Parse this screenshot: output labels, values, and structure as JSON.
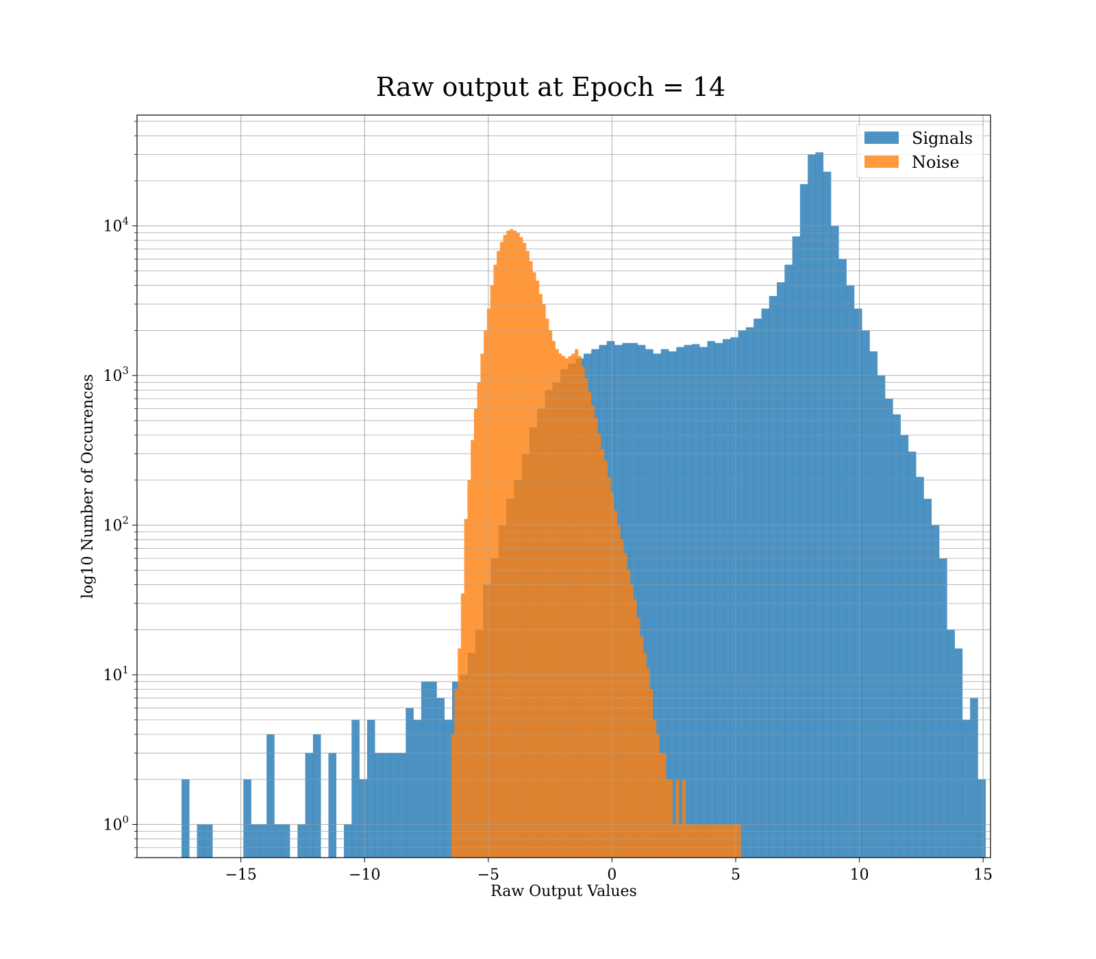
{
  "chart_data": {
    "type": "bar",
    "title": "Raw output at Epoch = 14",
    "xlabel": "Raw Output Values",
    "ylabel": "log10 Number of Occurences",
    "xlim": [
      -19.2,
      15.3
    ],
    "ylim": [
      0.6,
      55000
    ],
    "yscale": "log",
    "grid": true,
    "legend_placement": "top-right",
    "x_ticks": [
      -15,
      -10,
      -5,
      0,
      5,
      10,
      15
    ],
    "x_tick_labels": [
      "−15",
      "−10",
      "−5",
      "0",
      "5",
      "10",
      "15"
    ],
    "y_ticks": [
      1,
      10,
      100,
      1000,
      10000
    ],
    "y_tick_labels": [
      {
        "base": "10",
        "exp": "0"
      },
      {
        "base": "10",
        "exp": "1"
      },
      {
        "base": "10",
        "exp": "2"
      },
      {
        "base": "10",
        "exp": "3"
      },
      {
        "base": "10",
        "exp": "4"
      }
    ],
    "series": [
      {
        "name": "Signals",
        "color": "#1f77b4",
        "opacity": 0.8,
        "bin_start": -17.4,
        "bin_width": 0.3125,
        "values": [
          2,
          0,
          1,
          1,
          0,
          0,
          0,
          0,
          2,
          1,
          1,
          4,
          1,
          1,
          0,
          1,
          3,
          4,
          0,
          3,
          0,
          1,
          5,
          2,
          5,
          3,
          3,
          3,
          3,
          6,
          5,
          9,
          9,
          7,
          5,
          9,
          10,
          14,
          20,
          40,
          60,
          100,
          150,
          200,
          300,
          450,
          600,
          800,
          900,
          1100,
          1200,
          1300,
          1400,
          1500,
          1600,
          1700,
          1600,
          1650,
          1650,
          1600,
          1500,
          1400,
          1500,
          1450,
          1550,
          1600,
          1620,
          1550,
          1700,
          1650,
          1750,
          1800,
          2000,
          2100,
          2400,
          2800,
          3400,
          4200,
          5500,
          8500,
          19000,
          30000,
          31000,
          23000,
          10000,
          6000,
          4000,
          2800,
          2000,
          1450,
          1000,
          700,
          550,
          400,
          310,
          210,
          150,
          100,
          60,
          20,
          15,
          5,
          7,
          2,
          0
        ]
      },
      {
        "name": "Noise",
        "color": "#ff7f0e",
        "opacity": 0.8,
        "bin_start": -6.5,
        "bin_width": 0.1315,
        "values": [
          4,
          8,
          15,
          35,
          110,
          200,
          370,
          600,
          900,
          1400,
          2000,
          2800,
          4000,
          5500,
          6800,
          7800,
          8700,
          9300,
          9500,
          9300,
          9000,
          8400,
          7700,
          6800,
          5800,
          4900,
          4300,
          3500,
          3000,
          2400,
          2000,
          1700,
          1500,
          1400,
          1350,
          1300,
          1350,
          1400,
          1500,
          1350,
          1150,
          960,
          780,
          630,
          520,
          410,
          320,
          270,
          210,
          165,
          125,
          100,
          80,
          65,
          50,
          40,
          32,
          24,
          18,
          14,
          11,
          8,
          5,
          4,
          3,
          3,
          2,
          2,
          1,
          2,
          1,
          2,
          1,
          1,
          1,
          1,
          1,
          1,
          1,
          1,
          1,
          1,
          1,
          1,
          1,
          1,
          1,
          1,
          1,
          0
        ]
      }
    ]
  }
}
